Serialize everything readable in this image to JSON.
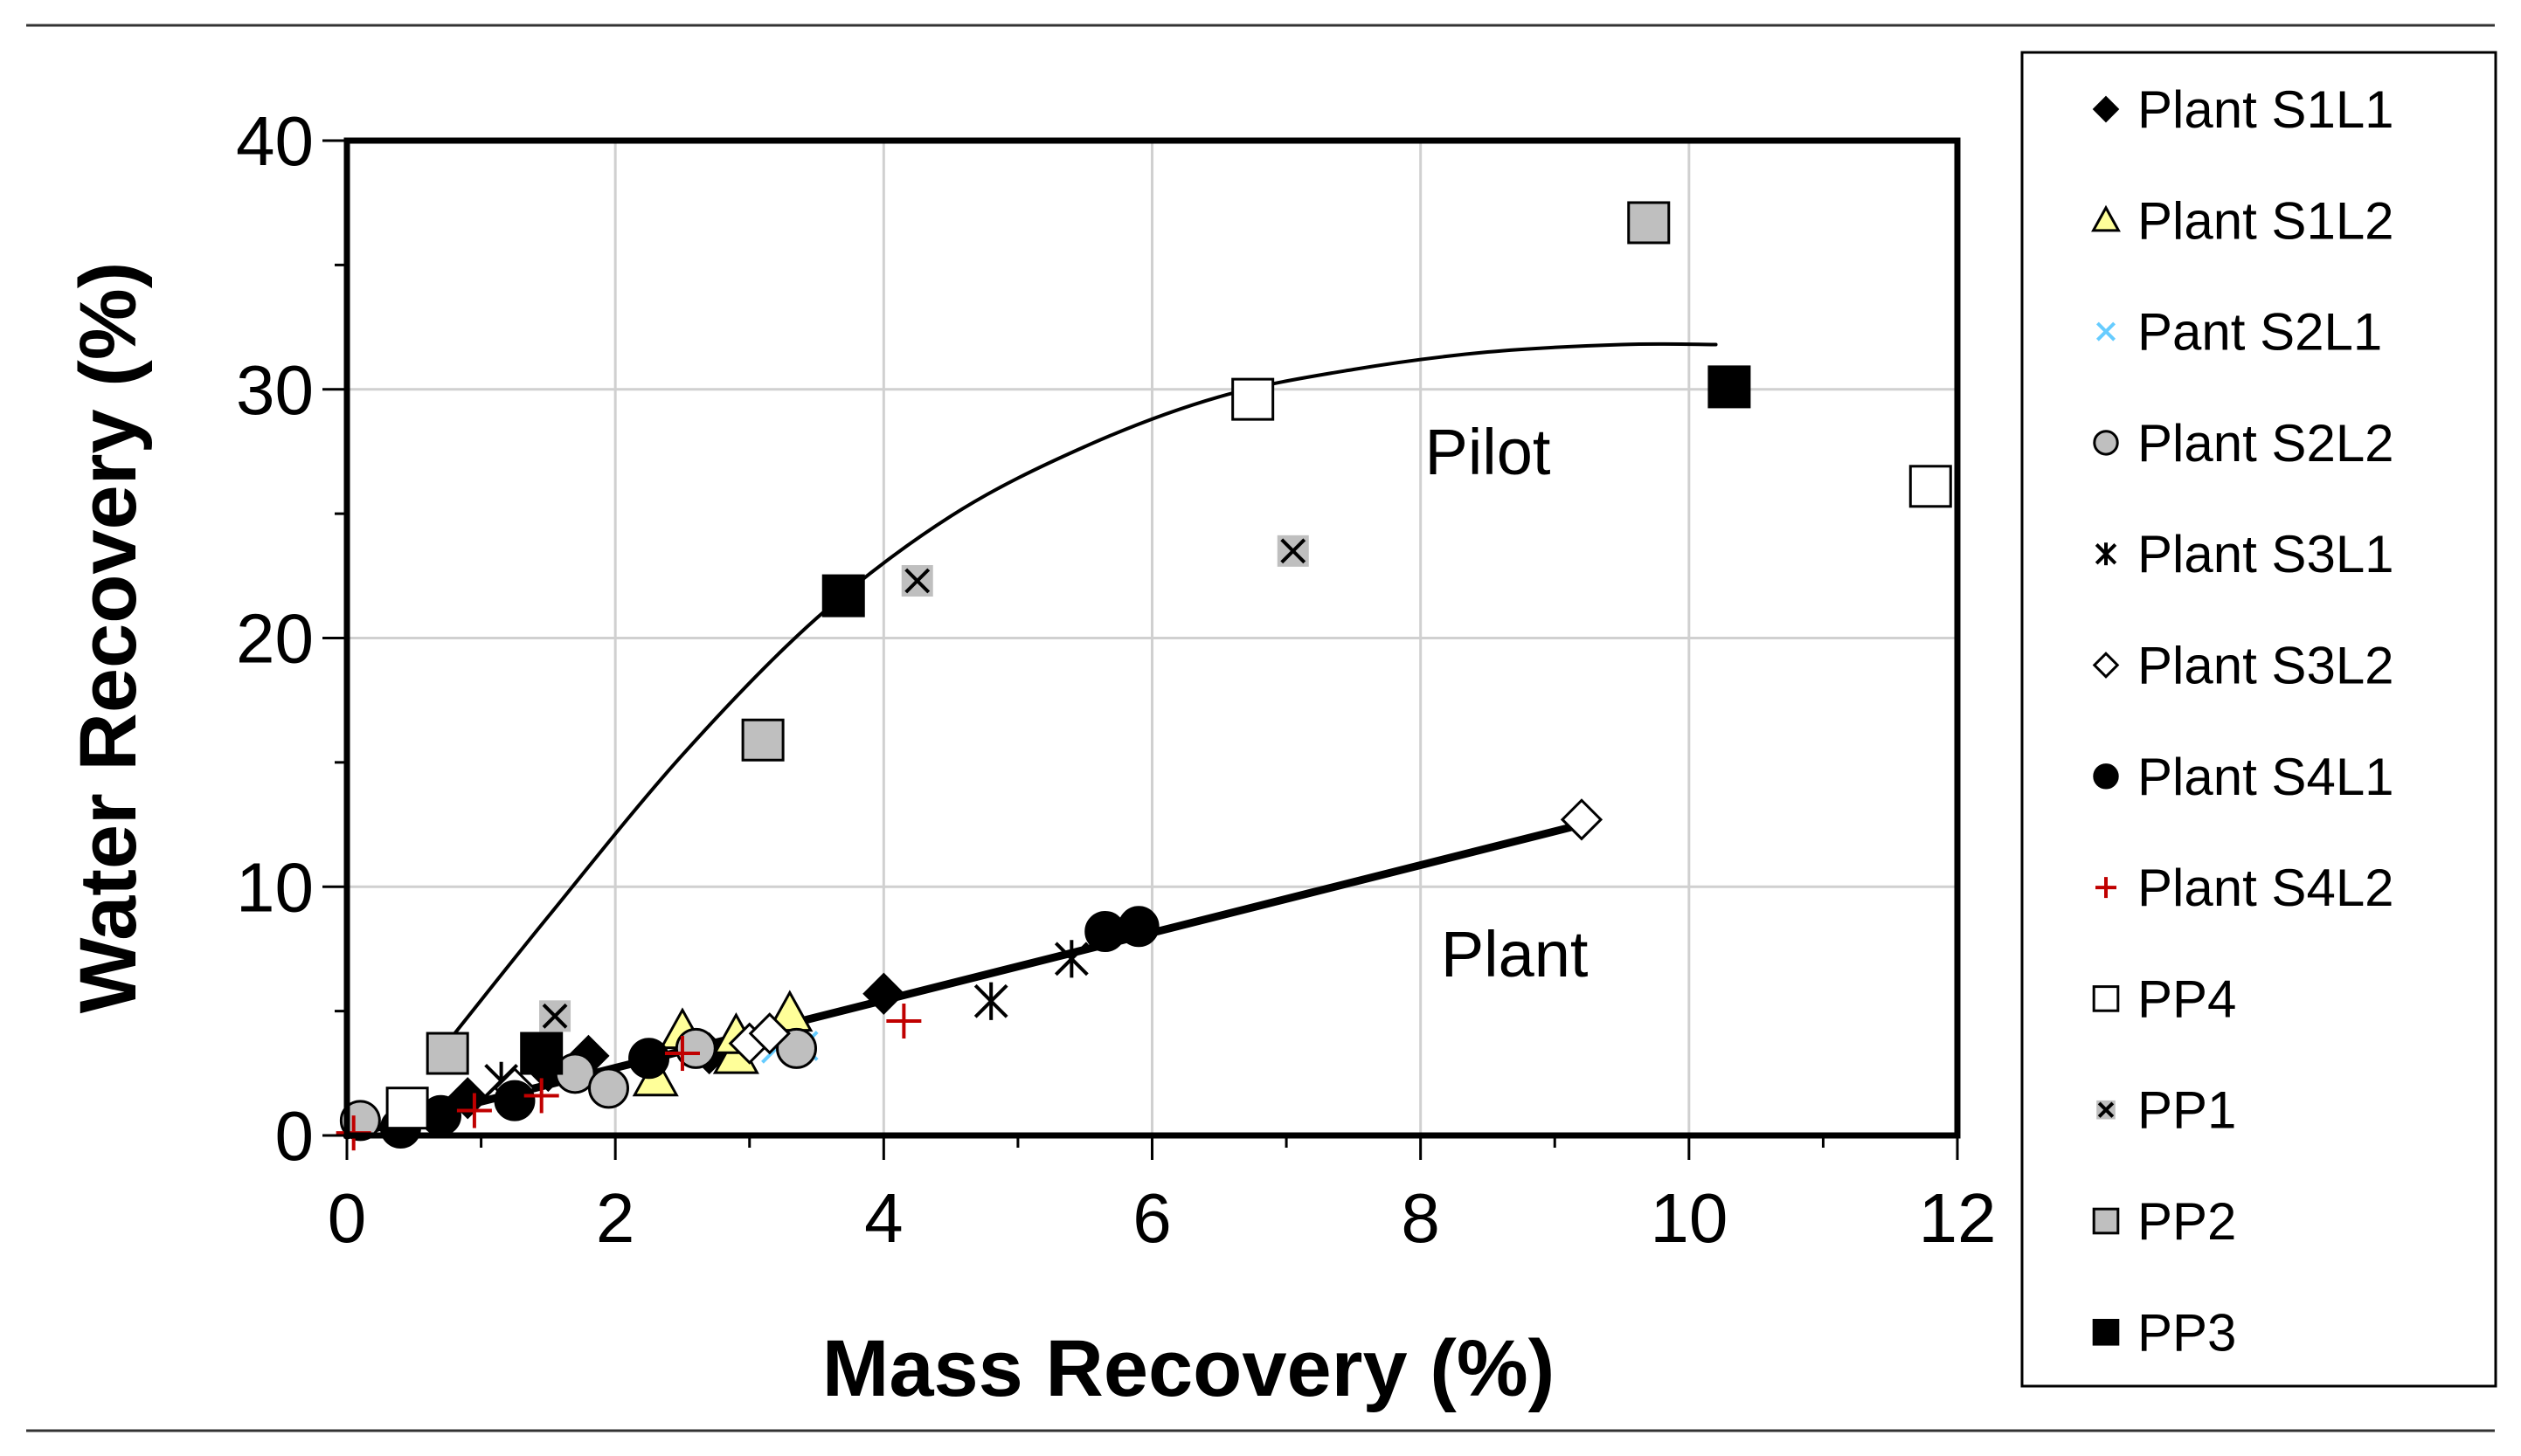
{
  "chart_data": {
    "type": "scatter",
    "title": "",
    "xlabel": "Mass Recovery (%)",
    "ylabel": "Water Recovery (%)",
    "xlim": [
      0,
      12
    ],
    "ylim": [
      0,
      40
    ],
    "xticks": [
      0,
      2,
      4,
      6,
      8,
      10,
      12
    ],
    "yticks": [
      0,
      10,
      20,
      30,
      40
    ],
    "grid": true,
    "legend_position": "right",
    "annotations": [
      {
        "text": "Pilot",
        "x": 8.5,
        "y": 27.5
      },
      {
        "text": "Plant",
        "x": 8.7,
        "y": 7.3
      }
    ],
    "fit_lines": [
      {
        "name": "Pilot",
        "x": [
          0.7,
          1.5,
          2.5,
          3.5,
          4.5,
          5.5,
          6.5,
          7.5,
          8.5,
          9.5,
          10.2
        ],
        "y": [
          3.4,
          8.8,
          15.3,
          20.8,
          24.9,
          27.7,
          29.7,
          30.8,
          31.5,
          31.8,
          31.8
        ],
        "width": "thin"
      },
      {
        "name": "Plant",
        "x": [
          0.0,
          9.2
        ],
        "y": [
          0.0,
          12.5
        ],
        "width": "thick"
      }
    ],
    "series": [
      {
        "name": "Plant S1L1",
        "marker": "diamond",
        "fill": "#000000",
        "x": [
          0.9,
          1.5,
          1.8,
          2.7,
          4.0
        ],
        "y": [
          1.5,
          2.6,
          3.2,
          3.3,
          5.7
        ]
      },
      {
        "name": "Plant S1L2",
        "marker": "triangle",
        "fill": "#ffff99",
        "x": [
          2.3,
          2.5,
          2.9,
          2.9,
          3.3
        ],
        "y": [
          2.3,
          4.2,
          3.2,
          4.0,
          4.9
        ]
      },
      {
        "name": "Pant S2L1",
        "marker": "x",
        "fill": "#66ccff",
        "x": [
          3.2,
          3.4
        ],
        "y": [
          3.5,
          3.6
        ]
      },
      {
        "name": "Plant S2L2",
        "marker": "circle",
        "fill": "#bfbfbf",
        "x": [
          0.1,
          1.7,
          1.95,
          2.6,
          3.35
        ],
        "y": [
          0.6,
          2.5,
          1.9,
          3.5,
          3.5
        ]
      },
      {
        "name": "Plant S3L1",
        "marker": "star",
        "fill": "#000000",
        "x": [
          1.15,
          4.8,
          5.4
        ],
        "y": [
          2.2,
          5.4,
          7.1
        ]
      },
      {
        "name": "Plant S3L2",
        "marker": "diamond-open",
        "fill": "#ffffff",
        "x": [
          1.25,
          3.0,
          3.15,
          9.2
        ],
        "y": [
          1.9,
          3.7,
          4.1,
          12.7
        ]
      },
      {
        "name": "Plant S4L1",
        "marker": "circle",
        "fill": "#000000",
        "x": [
          0.4,
          0.7,
          1.25,
          2.25,
          5.65,
          5.9
        ],
        "y": [
          0.3,
          0.8,
          1.4,
          3.1,
          8.2,
          8.4
        ]
      },
      {
        "name": "Plant S4L2",
        "marker": "plus",
        "fill": "#c00000",
        "x": [
          0.05,
          0.95,
          1.45,
          2.5,
          4.15
        ],
        "y": [
          0.1,
          1.0,
          1.6,
          3.3,
          4.6
        ]
      },
      {
        "name": "PP4",
        "marker": "square",
        "fill": "#ffffff",
        "x": [
          0.45,
          6.75,
          11.8
        ],
        "y": [
          1.1,
          29.6,
          26.1
        ]
      },
      {
        "name": "PP1",
        "marker": "xbox",
        "fill": "#bfbfbf",
        "x": [
          1.55,
          4.25,
          7.05
        ],
        "y": [
          4.8,
          22.3,
          23.5
        ]
      },
      {
        "name": "PP2",
        "marker": "square",
        "fill": "#bfbfbf",
        "x": [
          0.75,
          3.1,
          9.7
        ],
        "y": [
          3.3,
          15.9,
          36.7
        ]
      },
      {
        "name": "PP3",
        "marker": "square",
        "fill": "#000000",
        "x": [
          1.45,
          3.7,
          10.3
        ],
        "y": [
          3.3,
          21.7,
          30.1
        ]
      }
    ]
  }
}
